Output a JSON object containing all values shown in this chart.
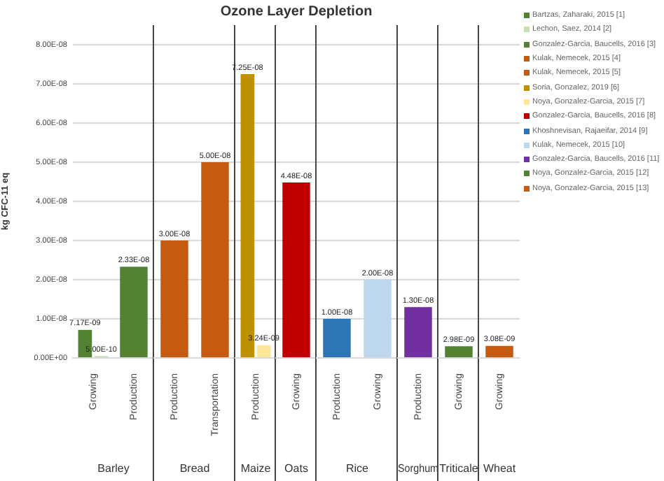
{
  "chart_data": [
    {
      "type": "bar",
      "ylabel": "kg CFC-11 eq",
      "xlabel": "Barley",
      "categories": [
        "Growing",
        "Production"
      ],
      "series": [
        {
          "name": "Bartzas, Zaharaki, 2015 [1]",
          "color": "#548235",
          "values": [
            7.17e-09,
            null
          ],
          "value_labels": [
            "7.17E-09",
            null
          ]
        },
        {
          "name": "Lechon, Saez, 2014 [2]",
          "color": "#c6e0b4",
          "values": [
            5e-10,
            null
          ],
          "value_labels": [
            "5.00E-10",
            null
          ]
        },
        {
          "name": "Gonzalez-Garcia, Baucells, 2016 [3]",
          "color": "#548235",
          "values": [
            null,
            2.33e-08
          ],
          "value_labels": [
            null,
            "2.33E-08"
          ]
        }
      ],
      "ylim": [
        0,
        8e-08
      ],
      "yticks": [
        {
          "value": 0,
          "label": "0.00E+00"
        },
        {
          "value": 1e-08,
          "label": "1.00E-08"
        },
        {
          "value": 2e-08,
          "label": "2.00E-08"
        },
        {
          "value": 3e-08,
          "label": "3.00E-08"
        },
        {
          "value": 4e-08,
          "label": "4.00E-08"
        },
        {
          "value": 5e-08,
          "label": "5.00E-08"
        },
        {
          "value": 6e-08,
          "label": "6.00E-08"
        },
        {
          "value": 7e-08,
          "label": "7.00E-08"
        },
        {
          "value": 8e-08,
          "label": "8.00E-08"
        }
      ],
      "grid": "y",
      "legend": "right"
    },
    {
      "type": "bar",
      "xlabel": "Bread",
      "categories": [
        "Production",
        "Transportation"
      ],
      "series": [
        {
          "name": "Kulak, Nemecek, 2015 [4]",
          "color": "#c55a11",
          "values": [
            3e-08,
            null
          ],
          "value_labels": [
            "3.00E-08",
            null
          ]
        },
        {
          "name": "Kulak, Nemecek, 2015 [5]",
          "color": "#c55a11",
          "values": [
            null,
            5e-08
          ],
          "value_labels": [
            null,
            "5.00E-08"
          ]
        }
      ],
      "ylim": [
        0,
        8e-08
      ],
      "grid": "y",
      "tick_labels": "x",
      "legend": "right"
    },
    {
      "type": "bar",
      "xlabel": "Maize",
      "categories": [
        "Production"
      ],
      "series": [
        {
          "name": "Soria, Gonzalez, 2019 [6]",
          "color": "#bf9000",
          "values": [
            7.25e-08
          ],
          "value_labels": [
            "7.25E-08"
          ]
        },
        {
          "name": "Noya, Gonzalez-Garcia, 2015 [7]",
          "color": "#ffe699",
          "values": [
            3.24e-09
          ],
          "value_labels": [
            "3.24E-09"
          ]
        }
      ],
      "ylim": [
        0,
        8e-08
      ],
      "grid": "y",
      "tick_labels": "x",
      "legend": "right"
    },
    {
      "type": "bar",
      "title": "Ozone Layer Depletion",
      "xlabel": "Oats",
      "categories": [
        "Growing"
      ],
      "series": [
        {
          "name": "Gonzalez-Garcia, Baucells, 2016 [8]",
          "color": "#c00000",
          "values": [
            4.48e-08
          ],
          "value_labels": [
            "4.48E-08"
          ]
        }
      ],
      "ylim": [
        0,
        8e-08
      ],
      "grid": "y",
      "tick_labels": "x",
      "legend": "right"
    },
    {
      "type": "bar",
      "xlabel": "Rice",
      "categories": [
        "Production",
        "Growing"
      ],
      "series": [
        {
          "name": "Khoshnevisan, Rajaeifar, 2014 [9]",
          "color": "#2e75b6",
          "values": [
            1e-08,
            null
          ],
          "value_labels": [
            "1.00E-08",
            null
          ]
        },
        {
          "name": "Kulak, Nemecek, 2015 [10]",
          "color": "#bdd7ee",
          "values": [
            null,
            2e-08
          ],
          "value_labels": [
            null,
            "2.00E-08"
          ]
        }
      ],
      "ylim": [
        0,
        8e-08
      ],
      "grid": "y",
      "tick_labels": "x",
      "legend": "right"
    },
    {
      "type": "bar",
      "xlabel": "Sorghum",
      "categories": [
        "Production"
      ],
      "series": [
        {
          "name": "Gonzalez-Garcia, Baucells, 2016 [11]",
          "color": "#7030a0",
          "values": [
            1.3e-08
          ],
          "value_labels": [
            "1.30E-08"
          ]
        }
      ],
      "ylim": [
        0,
        8e-08
      ],
      "grid": "y",
      "tick_labels": "x",
      "legend": "right"
    },
    {
      "type": "bar",
      "xlabel": "Triticale",
      "categories": [
        "Growing"
      ],
      "series": [
        {
          "name": "Noya, Gonzalez-Garcia, 2015 [12]",
          "color": "#548235",
          "values": [
            2.98e-09
          ],
          "value_labels": [
            "2.98E-09"
          ]
        }
      ],
      "ylim": [
        0,
        8e-08
      ],
      "grid": "y",
      "tick_labels": "x",
      "legend": "right"
    },
    {
      "type": "bar",
      "xlabel": "Wheat",
      "categories": [
        "Growing"
      ],
      "series": [
        {
          "name": "Noya, Gonzalez-Garcia, 2015 [13]",
          "color": "#c55a11",
          "values": [
            3.08e-09
          ],
          "value_labels": [
            "3.08E-09"
          ]
        }
      ],
      "ylim": [
        0,
        8e-08
      ],
      "grid": "y",
      "tick_labels": "x",
      "legend": "right"
    }
  ]
}
